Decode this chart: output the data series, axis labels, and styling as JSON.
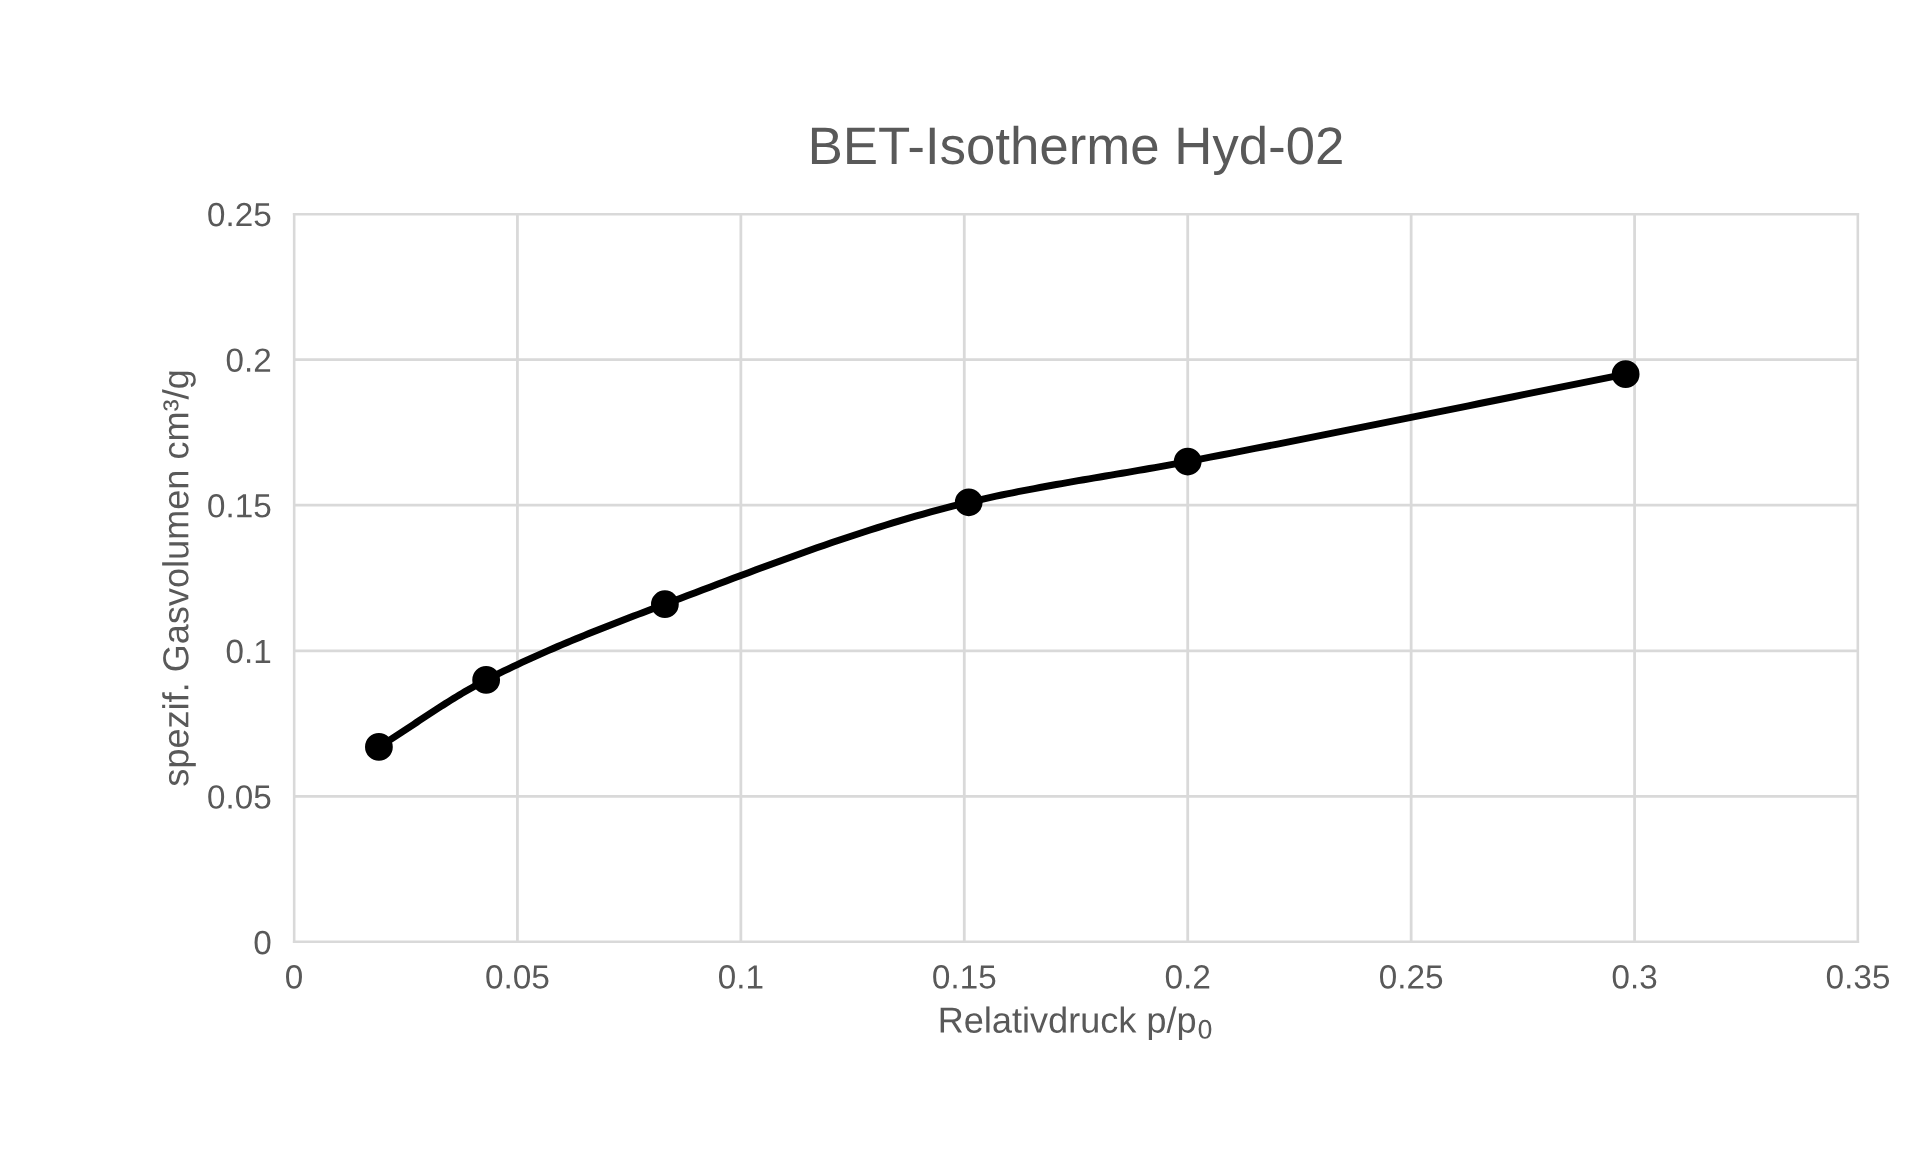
{
  "chart_data": {
    "type": "line",
    "title": "BET-Isotherme Hyd-02",
    "xlabel": "Relativdruck p/p$_{0}$",
    "ylabel": "spezif. Gasvolumen cm³/g",
    "x": [
      0.019,
      0.043,
      0.083,
      0.151,
      0.2,
      0.298
    ],
    "series": [
      {
        "color": "#000000",
        "values": [
          0.067,
          0.09,
          0.116,
          0.151,
          0.165,
          0.195
        ]
      }
    ],
    "xlim": [
      0,
      0.35
    ],
    "xticks": [
      0,
      0.05,
      0.1,
      0.15,
      0.2,
      0.25,
      0.3,
      0.35
    ],
    "ylim": [
      0,
      0.25
    ],
    "yticks": [
      0,
      0.05,
      0.1,
      0.15,
      0.2,
      0.25
    ],
    "grid": true,
    "marker": "circle",
    "line_style": "solid"
  }
}
